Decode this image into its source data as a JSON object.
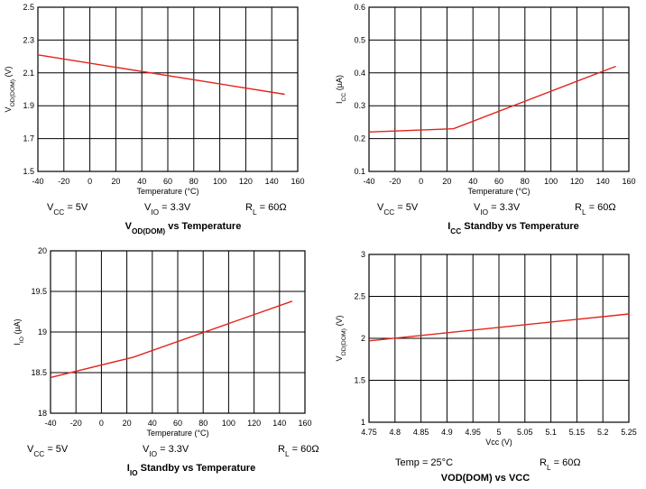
{
  "line_color": "#e3241b",
  "chart_data": [
    {
      "type": "line",
      "xlabel": "Temperature (°C)",
      "ylabel": {
        "main": "V",
        "sub": "OD(DOM)",
        "tail": " (V)"
      },
      "xlim": [
        -40,
        160
      ],
      "ylim": [
        1.5,
        2.5
      ],
      "xticks": [
        "-40",
        "-20",
        "0",
        "20",
        "40",
        "60",
        "80",
        "100",
        "120",
        "140",
        "160"
      ],
      "yticks": [
        "1.5",
        "1.7",
        "1.9",
        "2.1",
        "2.3",
        "2.5"
      ],
      "grid": true,
      "series": [
        {
          "x": [
            -40,
            150
          ],
          "y": [
            2.21,
            1.97
          ]
        }
      ],
      "conditions": [
        {
          "main": "V",
          "sub": "CC",
          "tail": " = 5V"
        },
        {
          "main": "V",
          "sub": "IO",
          "tail": " = 3.3V"
        },
        {
          "main": "R",
          "sub": "L",
          "tail": " = 60Ω"
        }
      ],
      "caption": {
        "main": "V",
        "sub": "OD(DOM)",
        "tail": " vs Temperature"
      }
    },
    {
      "type": "line",
      "xlabel": "Temperature (°C)",
      "ylabel": {
        "main": "I",
        "sub": "CC",
        "tail": " (µA)"
      },
      "xlim": [
        -40,
        160
      ],
      "ylim": [
        0.1,
        0.6
      ],
      "xticks": [
        "-40",
        "-20",
        "0",
        "20",
        "40",
        "60",
        "80",
        "100",
        "120",
        "140",
        "160"
      ],
      "yticks": [
        "0.1",
        "0.2",
        "0.3",
        "0.4",
        "0.5",
        "0.6"
      ],
      "grid": true,
      "series": [
        {
          "x": [
            -40,
            25,
            150
          ],
          "y": [
            0.22,
            0.23,
            0.42
          ]
        }
      ],
      "conditions": [
        {
          "main": "V",
          "sub": "CC",
          "tail": " = 5V"
        },
        {
          "main": "V",
          "sub": "IO",
          "tail": " = 3.3V"
        },
        {
          "main": "R",
          "sub": "L",
          "tail": " = 60Ω"
        }
      ],
      "caption": {
        "main": "I",
        "sub": "CC",
        "tail": " Standby vs Temperature"
      }
    },
    {
      "type": "line",
      "xlabel": "Temperature (°C)",
      "ylabel": {
        "main": "I",
        "sub": "IO",
        "tail": " (µA)"
      },
      "xlim": [
        -40,
        160
      ],
      "ylim": [
        18,
        20
      ],
      "xticks": [
        "-40",
        "-20",
        "0",
        "20",
        "40",
        "60",
        "80",
        "100",
        "120",
        "140",
        "160"
      ],
      "yticks": [
        "18",
        "18.5",
        "19",
        "19.5",
        "20"
      ],
      "grid": true,
      "series": [
        {
          "x": [
            -40,
            25,
            150
          ],
          "y": [
            18.44,
            18.69,
            19.38
          ]
        }
      ],
      "conditions": [
        {
          "main": "V",
          "sub": "CC",
          "tail": " = 5V"
        },
        {
          "main": "V",
          "sub": "IO",
          "tail": " = 3.3V"
        },
        {
          "main": "R",
          "sub": "L",
          "tail": " = 60Ω"
        }
      ],
      "caption": {
        "main": "I",
        "sub": "IO",
        "tail": " Standby vs Temperature"
      }
    },
    {
      "type": "line",
      "xlabel": "Vcc (V)",
      "ylabel": {
        "main": "V",
        "sub": "OD(DOM)",
        "tail": " (V)"
      },
      "xlim": [
        4.75,
        5.25
      ],
      "ylim": [
        1,
        3
      ],
      "xticks": [
        "4.75",
        "4.8",
        "4.85",
        "4.9",
        "4.95",
        "5",
        "5.05",
        "5.1",
        "5.15",
        "5.2",
        "5.25"
      ],
      "yticks": [
        "1",
        "1.5",
        "2",
        "2.5",
        "3"
      ],
      "grid": true,
      "series": [
        {
          "x": [
            4.75,
            5.25
          ],
          "y": [
            1.97,
            2.29
          ]
        }
      ],
      "conditions": [
        {
          "main": "Temp = 25°C",
          "sub": "",
          "tail": ""
        },
        {
          "main": "R",
          "sub": "L",
          "tail": " = 60Ω"
        }
      ],
      "caption": {
        "main": "VOD(DOM) vs VCC",
        "sub": "",
        "tail": ""
      }
    }
  ]
}
